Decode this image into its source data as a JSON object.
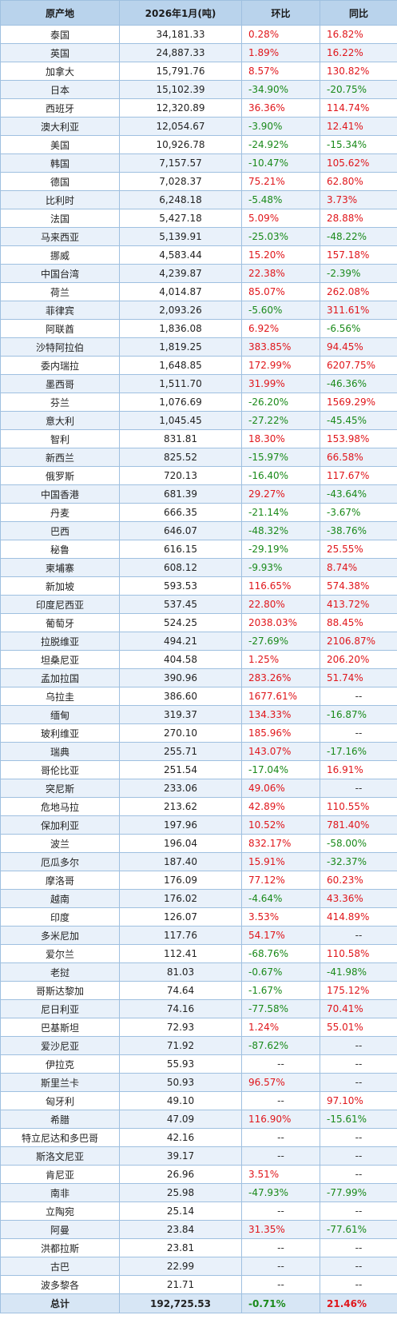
{
  "headers": [
    "原产地",
    "2026年1月(吨)",
    "环比",
    "同比"
  ],
  "colors": {
    "positive": "#e0161b",
    "negative": "#1a8a1a",
    "header_bg": "#b9d3ec",
    "stripe_bg": "#e9f1fa"
  },
  "rows": [
    [
      "泰国",
      "34,181.33",
      "0.28%",
      "16.82%"
    ],
    [
      "英国",
      "24,887.33",
      "1.89%",
      "16.22%"
    ],
    [
      "加拿大",
      "15,791.76",
      "8.57%",
      "130.82%"
    ],
    [
      "日本",
      "15,102.39",
      "-34.90%",
      "-20.75%"
    ],
    [
      "西班牙",
      "12,320.89",
      "36.36%",
      "114.74%"
    ],
    [
      "澳大利亚",
      "12,054.67",
      "-3.90%",
      "12.41%"
    ],
    [
      "美国",
      "10,926.78",
      "-24.92%",
      "-15.34%"
    ],
    [
      "韩国",
      "7,157.57",
      "-10.47%",
      "105.62%"
    ],
    [
      "德国",
      "7,028.37",
      "75.21%",
      "62.80%"
    ],
    [
      "比利时",
      "6,248.18",
      "-5.48%",
      "3.73%"
    ],
    [
      "法国",
      "5,427.18",
      "5.09%",
      "28.88%"
    ],
    [
      "马来西亚",
      "5,139.91",
      "-25.03%",
      "-48.22%"
    ],
    [
      "挪威",
      "4,583.44",
      "15.20%",
      "157.18%"
    ],
    [
      "中国台湾",
      "4,239.87",
      "22.38%",
      "-2.39%"
    ],
    [
      "荷兰",
      "4,014.87",
      "85.07%",
      "262.08%"
    ],
    [
      "菲律宾",
      "2,093.26",
      "-5.60%",
      "311.61%"
    ],
    [
      "阿联酋",
      "1,836.08",
      "6.92%",
      "-6.56%"
    ],
    [
      "沙特阿拉伯",
      "1,819.25",
      "383.85%",
      "94.45%"
    ],
    [
      "委内瑞拉",
      "1,648.85",
      "172.99%",
      "6207.75%"
    ],
    [
      "墨西哥",
      "1,511.70",
      "31.99%",
      "-46.36%"
    ],
    [
      "芬兰",
      "1,076.69",
      "-26.20%",
      "1569.29%"
    ],
    [
      "意大利",
      "1,045.45",
      "-27.22%",
      "-45.45%"
    ],
    [
      "智利",
      "831.81",
      "18.30%",
      "153.98%"
    ],
    [
      "新西兰",
      "825.52",
      "-15.97%",
      "66.58%"
    ],
    [
      "俄罗斯",
      "720.13",
      "-16.40%",
      "117.67%"
    ],
    [
      "中国香港",
      "681.39",
      "29.27%",
      "-43.64%"
    ],
    [
      "丹麦",
      "666.35",
      "-21.14%",
      "-3.67%"
    ],
    [
      "巴西",
      "646.07",
      "-48.32%",
      "-38.76%"
    ],
    [
      "秘鲁",
      "616.15",
      "-29.19%",
      "25.55%"
    ],
    [
      "柬埔寨",
      "608.12",
      "-9.93%",
      "8.74%"
    ],
    [
      "新加坡",
      "593.53",
      "116.65%",
      "574.38%"
    ],
    [
      "印度尼西亚",
      "537.45",
      "22.80%",
      "413.72%"
    ],
    [
      "葡萄牙",
      "524.25",
      "2038.03%",
      "88.45%"
    ],
    [
      "拉脱维亚",
      "494.21",
      "-27.69%",
      "2106.87%"
    ],
    [
      "坦桑尼亚",
      "404.58",
      "1.25%",
      "206.20%"
    ],
    [
      "孟加拉国",
      "390.96",
      "283.26%",
      "51.74%"
    ],
    [
      "乌拉圭",
      "386.60",
      "1677.61%",
      "--"
    ],
    [
      "缅甸",
      "319.37",
      "134.33%",
      "-16.87%"
    ],
    [
      "玻利维亚",
      "270.10",
      "185.96%",
      "--"
    ],
    [
      "瑞典",
      "255.71",
      "143.07%",
      "-17.16%"
    ],
    [
      "哥伦比亚",
      "251.54",
      "-17.04%",
      "16.91%"
    ],
    [
      "突尼斯",
      "233.06",
      "49.06%",
      "--"
    ],
    [
      "危地马拉",
      "213.62",
      "42.89%",
      "110.55%"
    ],
    [
      "保加利亚",
      "197.96",
      "10.52%",
      "781.40%"
    ],
    [
      "波兰",
      "196.04",
      "832.17%",
      "-58.00%"
    ],
    [
      "厄瓜多尔",
      "187.40",
      "15.91%",
      "-32.37%"
    ],
    [
      "摩洛哥",
      "176.09",
      "77.12%",
      "60.23%"
    ],
    [
      "越南",
      "176.02",
      "-4.64%",
      "43.36%"
    ],
    [
      "印度",
      "126.07",
      "3.53%",
      "414.89%"
    ],
    [
      "多米尼加",
      "117.76",
      "54.17%",
      "--"
    ],
    [
      "爱尔兰",
      "112.41",
      "-68.76%",
      "110.58%"
    ],
    [
      "老挝",
      "81.03",
      "-0.67%",
      "-41.98%"
    ],
    [
      "哥斯达黎加",
      "74.64",
      "-1.67%",
      "175.12%"
    ],
    [
      "尼日利亚",
      "74.16",
      "-77.58%",
      "70.41%"
    ],
    [
      "巴基斯坦",
      "72.93",
      "1.24%",
      "55.01%"
    ],
    [
      "爱沙尼亚",
      "71.92",
      "-87.62%",
      "--"
    ],
    [
      "伊拉克",
      "55.93",
      "--",
      "--"
    ],
    [
      "斯里兰卡",
      "50.93",
      "96.57%",
      "--"
    ],
    [
      "匈牙利",
      "49.10",
      "--",
      "97.10%"
    ],
    [
      "希腊",
      "47.09",
      "116.90%",
      "-15.61%"
    ],
    [
      "特立尼达和多巴哥",
      "42.16",
      "--",
      "--"
    ],
    [
      "斯洛文尼亚",
      "39.17",
      "--",
      "--"
    ],
    [
      "肯尼亚",
      "26.96",
      "3.51%",
      "--"
    ],
    [
      "南非",
      "25.98",
      "-47.93%",
      "-77.99%"
    ],
    [
      "立陶宛",
      "25.14",
      "--",
      "--"
    ],
    [
      "阿曼",
      "23.84",
      "31.35%",
      "-77.61%"
    ],
    [
      "洪都拉斯",
      "23.81",
      "--",
      "--"
    ],
    [
      "古巴",
      "22.99",
      "--",
      "--"
    ],
    [
      "波多黎各",
      "21.71",
      "--",
      "--"
    ]
  ],
  "total": [
    "总计",
    "192,725.53",
    "-0.71%",
    "21.46%"
  ]
}
